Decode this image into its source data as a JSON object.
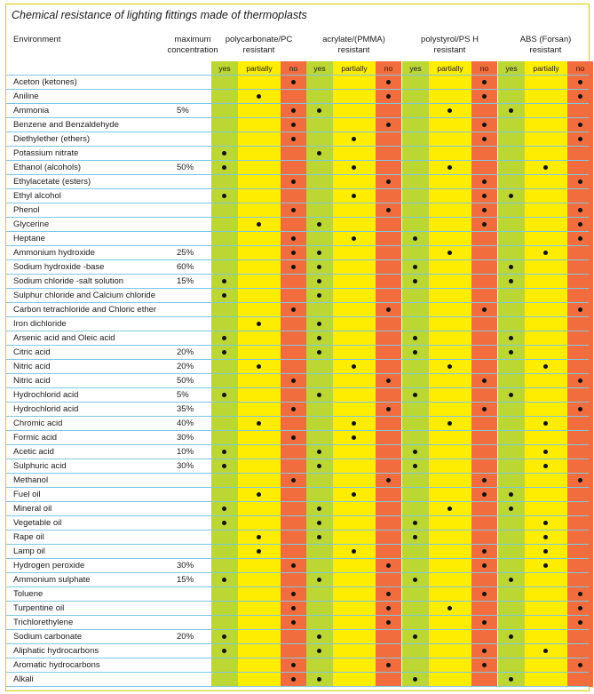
{
  "title": "Chemical resistance of lighting fittings made of thermoplasts",
  "header": {
    "environment": "Environment",
    "concentration_line1": "maximum",
    "concentration_line2": "concentration"
  },
  "groups": [
    {
      "name": "polycarbonate/PC",
      "sub": "resistant"
    },
    {
      "name": "acrylate/(PMMA)",
      "sub": "resistant"
    },
    {
      "name": "polystyrol/PS H",
      "sub": "resistant"
    },
    {
      "name": "ABS (Forsan)",
      "sub": "resistant"
    }
  ],
  "subcolumns": [
    "yes",
    "partially",
    "no"
  ],
  "colors": {
    "yes": "#bcd633",
    "partially": "#ffed00",
    "no": "#f26d3d",
    "rule": "#7ec7e2"
  },
  "legend_codes": {
    "y": "yes",
    "p": "partially",
    "n": "no",
    "-": "blank"
  },
  "rows": [
    {
      "env": "Aceton (ketones)",
      "conc": "",
      "r": [
        "n",
        "n",
        "n",
        "n"
      ]
    },
    {
      "env": "Aniline",
      "conc": "",
      "r": [
        "p",
        "n",
        "n",
        "n"
      ]
    },
    {
      "env": "Ammonia",
      "conc": "5%",
      "r": [
        "n",
        "y",
        "p",
        "y"
      ]
    },
    {
      "env": "Benzene and Benzaldehyde",
      "conc": "",
      "r": [
        "n",
        "n",
        "n",
        "n"
      ]
    },
    {
      "env": "Diethylether (ethers)",
      "conc": "",
      "r": [
        "n",
        "p",
        "n",
        "n"
      ]
    },
    {
      "env": "Potassium nitrate",
      "conc": "",
      "r": [
        "y",
        "y",
        "-",
        "-"
      ]
    },
    {
      "env": "Ethanol (alcohols)",
      "conc": "50%",
      "r": [
        "y",
        "p",
        "p",
        "p"
      ]
    },
    {
      "env": "Ethylacetate (esters)",
      "conc": "",
      "r": [
        "n",
        "n",
        "n",
        "n"
      ]
    },
    {
      "env": "Ethyl alcohol",
      "conc": "",
      "r": [
        "y",
        "p",
        "n",
        "y"
      ]
    },
    {
      "env": "Phenol",
      "conc": "",
      "r": [
        "n",
        "n",
        "n",
        "n"
      ]
    },
    {
      "env": "Glycerine",
      "conc": "",
      "r": [
        "p",
        "y",
        "n",
        "n"
      ]
    },
    {
      "env": "Heptane",
      "conc": "",
      "r": [
        "n",
        "p",
        "y",
        "n"
      ]
    },
    {
      "env": "Ammonium hydroxide",
      "conc": "25%",
      "r": [
        "n",
        "y",
        "p",
        "p"
      ]
    },
    {
      "env": "Sodium hydroxide -base",
      "conc": "60%",
      "r": [
        "n",
        "y",
        "y",
        "y"
      ]
    },
    {
      "env": "Sodium chloride -salt solution",
      "conc": "15%",
      "r": [
        "y",
        "y",
        "y",
        "y"
      ]
    },
    {
      "env": "Sulphur chloride and Calcium chloride",
      "conc": "",
      "r": [
        "y",
        "y",
        "-",
        "-"
      ]
    },
    {
      "env": "Carbon tetrachloride and Chloric ether",
      "conc": "",
      "r": [
        "n",
        "n",
        "n",
        "n"
      ]
    },
    {
      "env": "Iron dichloride",
      "conc": "",
      "r": [
        "p",
        "y",
        "-",
        "-"
      ]
    },
    {
      "env": "Arsenic acid and Oleic acid",
      "conc": "",
      "r": [
        "y",
        "y",
        "y",
        "y"
      ]
    },
    {
      "env": "Citric acid",
      "conc": "20%",
      "r": [
        "y",
        "y",
        "y",
        "y"
      ]
    },
    {
      "env": "Nitric acid",
      "conc": "20%",
      "r": [
        "p",
        "p",
        "p",
        "p"
      ]
    },
    {
      "env": "Nitric acid",
      "conc": "50%",
      "r": [
        "n",
        "n",
        "n",
        "n"
      ]
    },
    {
      "env": "Hydrochlorid acid",
      "conc": "5%",
      "r": [
        "y",
        "y",
        "y",
        "y"
      ]
    },
    {
      "env": "Hydrochlorid acid",
      "conc": "35%",
      "r": [
        "n",
        "n",
        "n",
        "n"
      ]
    },
    {
      "env": "Chromic acid",
      "conc": "40%",
      "r": [
        "p",
        "p",
        "p",
        "p"
      ]
    },
    {
      "env": "Formic acid",
      "conc": "30%",
      "r": [
        "n",
        "p",
        "-",
        "-"
      ]
    },
    {
      "env": "Acetic acid",
      "conc": "10%",
      "r": [
        "y",
        "y",
        "y",
        "p"
      ]
    },
    {
      "env": "Sulphuric acid",
      "conc": "30%",
      "r": [
        "y",
        "y",
        "y",
        "p"
      ]
    },
    {
      "env": "Methanol",
      "conc": "",
      "r": [
        "n",
        "n",
        "n",
        "n"
      ]
    },
    {
      "env": "Fuel oil",
      "conc": "",
      "r": [
        "p",
        "p",
        "n",
        "y"
      ]
    },
    {
      "env": "Mineral oil",
      "conc": "",
      "r": [
        "y",
        "y",
        "p",
        "y"
      ]
    },
    {
      "env": "Vegetable oil",
      "conc": "",
      "r": [
        "y",
        "y",
        "y",
        "p"
      ]
    },
    {
      "env": "Rape oil",
      "conc": "",
      "r": [
        "p",
        "y",
        "y",
        "p"
      ]
    },
    {
      "env": "Lamp oil",
      "conc": "",
      "r": [
        "p",
        "p",
        "n",
        "p"
      ]
    },
    {
      "env": "Hydrogen peroxide",
      "conc": "30%",
      "r": [
        "n",
        "n",
        "n",
        "p"
      ]
    },
    {
      "env": "Ammonium sulphate",
      "conc": "15%",
      "r": [
        "y",
        "y",
        "y",
        "y"
      ]
    },
    {
      "env": "Toluene",
      "conc": "",
      "r": [
        "n",
        "n",
        "n",
        "n"
      ]
    },
    {
      "env": "Turpentine oil",
      "conc": "",
      "r": [
        "n",
        "n",
        "p",
        "n"
      ]
    },
    {
      "env": "Trichlorethylene",
      "conc": "",
      "r": [
        "n",
        "n",
        "n",
        "n"
      ]
    },
    {
      "env": "Sodium carbonate",
      "conc": "20%",
      "r": [
        "y",
        "y",
        "y",
        "y"
      ]
    },
    {
      "env": "Aliphatic hydrocarbons",
      "conc": "",
      "r": [
        "y",
        "y",
        "n",
        "p"
      ]
    },
    {
      "env": "Aromatic hydrocarbons",
      "conc": "",
      "r": [
        "n",
        "n",
        "n",
        "n"
      ]
    },
    {
      "env": "Alkali",
      "conc": "",
      "r": [
        "n",
        "y",
        "y",
        "y"
      ]
    }
  ]
}
